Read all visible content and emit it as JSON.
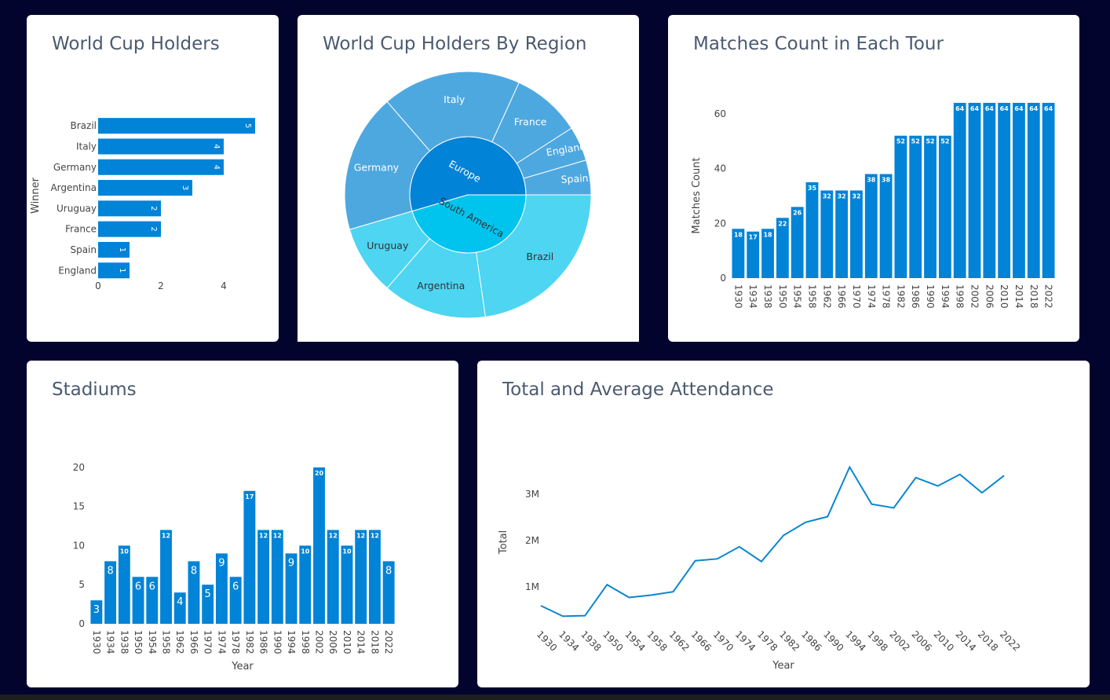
{
  "colors": {
    "background": "#03042e",
    "bar": "#0183d7",
    "europe": "#0183d7",
    "europe_leaf": "#4ea8e0",
    "south_america": "#00c4ee",
    "south_america_leaf": "#4dd5f2",
    "line": "#0a86cf"
  },
  "cards": {
    "holders": {
      "title": "World Cup Holders"
    },
    "region": {
      "title": "World Cup Holders By Region"
    },
    "matches": {
      "title": "Matches Count in Each Tour"
    },
    "stadiums": {
      "title": "Stadiums"
    },
    "attendance": {
      "title": "Total and Average Attendance"
    }
  },
  "chart_data": [
    {
      "id": "holders",
      "type": "bar",
      "orientation": "horizontal",
      "title": "World Cup Holders",
      "ylabel": "Winner",
      "xlabel": "",
      "categories": [
        "Brazil",
        "Italy",
        "Germany",
        "Argentina",
        "Uruguay",
        "France",
        "Spain",
        "England"
      ],
      "values": [
        5,
        4,
        4,
        3,
        2,
        2,
        1,
        1
      ],
      "xticks": [
        0,
        2,
        4
      ],
      "xlim": [
        0,
        5
      ]
    },
    {
      "id": "region",
      "type": "sunburst",
      "title": "World Cup Holders By Region",
      "groups": [
        {
          "name": "Europe",
          "children": [
            {
              "name": "Germany",
              "value": 4
            },
            {
              "name": "Italy",
              "value": 4
            },
            {
              "name": "France",
              "value": 2
            },
            {
              "name": "England",
              "value": 1
            },
            {
              "name": "Spain",
              "value": 1
            }
          ]
        },
        {
          "name": "South America",
          "children": [
            {
              "name": "Brazil",
              "value": 5
            },
            {
              "name": "Argentina",
              "value": 3
            },
            {
              "name": "Uruguay",
              "value": 2
            }
          ]
        }
      ]
    },
    {
      "id": "matches",
      "type": "bar",
      "title": "Matches Count in Each Tour",
      "ylabel": "Matches Count",
      "xlabel": "",
      "categories": [
        "1930",
        "1934",
        "1938",
        "1950",
        "1954",
        "1958",
        "1962",
        "1966",
        "1970",
        "1974",
        "1978",
        "1982",
        "1986",
        "1990",
        "1994",
        "1998",
        "2002",
        "2006",
        "2010",
        "2014",
        "2018",
        "2022"
      ],
      "values": [
        18,
        17,
        18,
        22,
        26,
        35,
        32,
        32,
        32,
        38,
        38,
        52,
        52,
        52,
        52,
        64,
        64,
        64,
        64,
        64,
        64,
        64
      ],
      "yticks": [
        0,
        20,
        40,
        60
      ],
      "ylim": [
        0,
        70
      ]
    },
    {
      "id": "stadiums",
      "type": "bar",
      "title": "Stadiums",
      "xlabel": "Year",
      "ylabel": "",
      "categories": [
        "1930",
        "1934",
        "1938",
        "1950",
        "1954",
        "1958",
        "1962",
        "1966",
        "1970",
        "1974",
        "1978",
        "1982",
        "1986",
        "1990",
        "1994",
        "1998",
        "2002",
        "2006",
        "2010",
        "2014",
        "2018",
        "2022"
      ],
      "values": [
        3,
        8,
        10,
        6,
        6,
        12,
        4,
        8,
        5,
        9,
        6,
        17,
        12,
        12,
        9,
        10,
        20,
        12,
        10,
        12,
        12,
        8
      ],
      "yticks": [
        0,
        5,
        10,
        15,
        20
      ],
      "ylim": [
        0,
        21
      ]
    },
    {
      "id": "attendance",
      "type": "line",
      "title": "Total and Average Attendance",
      "xlabel": "Year",
      "ylabel": "Total",
      "x": [
        "1930",
        "1934",
        "1938",
        "1950",
        "1954",
        "1958",
        "1962",
        "1966",
        "1970",
        "1974",
        "1978",
        "1982",
        "1986",
        "1990",
        "1994",
        "1998",
        "2002",
        "2006",
        "2010",
        "2014",
        "2018",
        "2022"
      ],
      "values": [
        590549,
        363000,
        375700,
        1045246,
        768607,
        819810,
        893172,
        1563135,
        1603975,
        1865753,
        1545791,
        2109723,
        2394031,
        2516215,
        3587538,
        2785100,
        2705197,
        3359439,
        3178856,
        3429873,
        3031768,
        3404252
      ],
      "yticks": [
        1000000,
        2000000,
        3000000
      ],
      "ytick_labels": [
        "1M",
        "2M",
        "3M"
      ],
      "ylim": [
        200000,
        3800000
      ]
    }
  ]
}
